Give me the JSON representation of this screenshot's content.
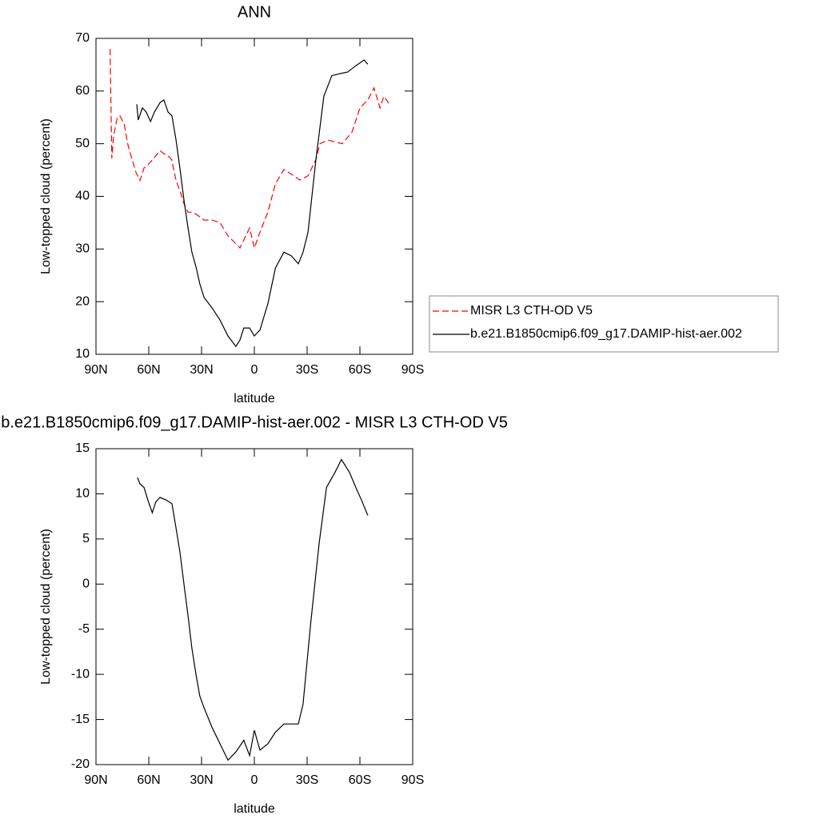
{
  "chart_data": [
    {
      "type": "line",
      "title": "ANN",
      "xlabel": "latitude",
      "ylabel": "Low-topped cloud (percent)",
      "xlim": [
        90,
        -90
      ],
      "xticks": [
        {
          "value": 90,
          "label": "90N"
        },
        {
          "value": 60,
          "label": "60N"
        },
        {
          "value": 30,
          "label": "30N"
        },
        0,
        {
          "value": -30,
          "label": "30S"
        },
        {
          "value": -60,
          "label": "60S"
        },
        {
          "value": -90,
          "label": "90S"
        }
      ],
      "ylim": [
        10,
        70
      ],
      "yticks": [
        10,
        20,
        30,
        40,
        50,
        60,
        70
      ],
      "legend": "right",
      "series": [
        {
          "name": "MISR L3 CTH-OD V5",
          "color": "#ff0000",
          "dash": "dashed",
          "x": [
            82,
            81,
            80,
            78,
            76.4,
            74,
            72,
            69.5,
            67.3,
            65,
            62.7,
            60.5,
            58,
            56,
            53.6,
            51.4,
            49,
            47,
            44.5,
            42,
            40,
            37.7,
            35.5,
            33,
            28.6,
            24,
            19.5,
            15,
            10.5,
            8.2,
            6,
            2.7,
            0,
            -3.2,
            -7.7,
            -12,
            -16.8,
            -21,
            -25.9,
            -30.5,
            -35,
            -37.3,
            -41.8,
            -46.4,
            -50,
            -55.5,
            -60,
            -64.5,
            -68,
            -71.4,
            -73.6,
            -76.8
          ],
          "values": [
            68,
            47.2,
            51.5,
            54.8,
            55.3,
            53.8,
            50,
            47,
            44.6,
            43,
            45.4,
            46,
            46.9,
            47.7,
            48.7,
            48.1,
            47.7,
            47,
            43,
            40.8,
            38.6,
            37,
            37,
            36.6,
            35.5,
            35.5,
            35,
            32.5,
            31,
            30.2,
            31.7,
            34,
            30.2,
            33.2,
            37,
            42.4,
            45.1,
            44.2,
            43.1,
            43.9,
            47,
            50,
            50.7,
            50.3,
            50,
            52.2,
            56.8,
            58.3,
            60.6,
            56.8,
            59,
            57.5
          ]
        },
        {
          "name": "b.e21.B1850cmip6.f09_g17.DAMIP-hist-aer.002",
          "color": "#000000",
          "dash": "solid",
          "x": [
            66.8,
            66,
            63.6,
            61.4,
            59,
            56.8,
            53.6,
            51.4,
            49,
            46.8,
            44.5,
            42.3,
            40,
            37.7,
            35.5,
            33,
            31,
            28.6,
            24,
            19.5,
            15,
            10.5,
            8.2,
            6,
            2.7,
            0,
            -3.2,
            -7.7,
            -12,
            -16.8,
            -21,
            -25,
            -27.7,
            -30.5,
            -35,
            -39.5,
            -44,
            -48.6,
            -53,
            -57.7,
            -62.3,
            -64.5
          ],
          "values": [
            57.5,
            54.5,
            56.8,
            56,
            54.2,
            56,
            57.8,
            58.3,
            56,
            55.3,
            50.7,
            45.4,
            39.3,
            34,
            29.4,
            26.4,
            23.4,
            20.8,
            18.8,
            16.5,
            13.5,
            11.5,
            12.7,
            15,
            15,
            13.5,
            14.6,
            19.6,
            26.4,
            29.4,
            28.7,
            27.2,
            29.4,
            33.2,
            47,
            59,
            62.9,
            63.3,
            63.6,
            64.8,
            65.9,
            65.1
          ]
        }
      ]
    },
    {
      "type": "line",
      "title": "b.e21.B1850cmip6.f09_g17.DAMIP-hist-aer.002 - MISR L3 CTH-OD V5",
      "xlabel": "latitude",
      "ylabel": "Low-topped cloud (percent)",
      "xlim": [
        90,
        -90
      ],
      "xticks": [
        {
          "value": 90,
          "label": "90N"
        },
        {
          "value": 60,
          "label": "60N"
        },
        {
          "value": 30,
          "label": "30N"
        },
        0,
        {
          "value": -30,
          "label": "30S"
        },
        {
          "value": -60,
          "label": "60S"
        },
        {
          "value": -90,
          "label": "90S"
        }
      ],
      "ylim": [
        -20,
        15
      ],
      "yticks": [
        -20,
        -15,
        -10,
        -5,
        0,
        5,
        10,
        15
      ],
      "series": [
        {
          "color": "#000000",
          "dash": "solid",
          "x": [
            66.4,
            65,
            62.7,
            60.5,
            58,
            56,
            53.6,
            50,
            46.8,
            44.5,
            42.3,
            40,
            37.7,
            35.5,
            33,
            31,
            28.6,
            24,
            19.5,
            15,
            10.5,
            6,
            2.7,
            0,
            -3.2,
            -7.7,
            -12,
            -16.8,
            -21,
            -25,
            -27.7,
            -32,
            -36.8,
            -41,
            -45.9,
            -49.5,
            -54,
            -57.7,
            -60.9,
            -64.5
          ],
          "values": [
            11.8,
            11.1,
            10.7,
            9.3,
            7.9,
            9.1,
            9.6,
            9.3,
            8.9,
            6.2,
            3.6,
            0,
            -3.5,
            -7.1,
            -10.2,
            -12.4,
            -13.7,
            -15.9,
            -17.7,
            -19.5,
            -18.6,
            -17.3,
            -19,
            -16.2,
            -18.4,
            -17.7,
            -16.4,
            -15.5,
            -15.5,
            -15.5,
            -13.3,
            -4.4,
            4.5,
            10.7,
            12.4,
            13.8,
            12.4,
            10.7,
            9.3,
            7.6
          ]
        }
      ]
    }
  ]
}
